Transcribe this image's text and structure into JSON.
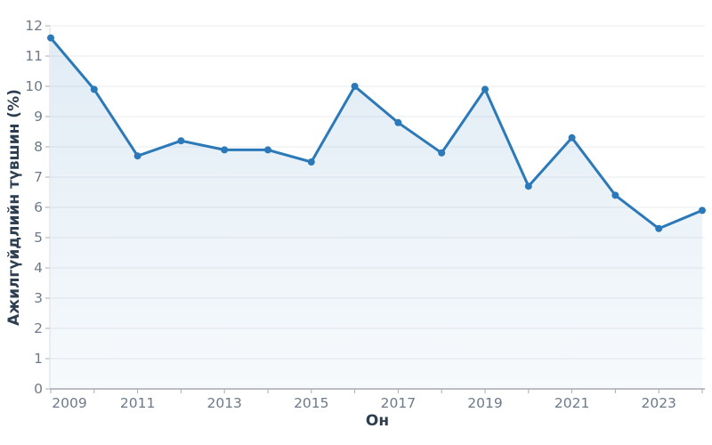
{
  "chart_data": {
    "type": "line",
    "title": "",
    "x": [
      2009,
      2010,
      2011,
      2012,
      2013,
      2014,
      2015,
      2016,
      2017,
      2018,
      2019,
      2020,
      2021,
      2022,
      2023,
      2024
    ],
    "values": [
      11.6,
      9.9,
      7.7,
      8.2,
      7.9,
      7.9,
      7.5,
      10.0,
      8.8,
      7.8,
      9.9,
      6.7,
      8.3,
      6.4,
      5.3,
      5.9
    ],
    "xlabel": "Он",
    "ylabel": "Ажилгүйдлийн түвшин (%)",
    "ylim": [
      0,
      12
    ],
    "ytick_step": 1,
    "xtick_labels": [
      "2009",
      "2011",
      "2013",
      "2015",
      "2017",
      "2019",
      "2021",
      "2023"
    ],
    "grid": "horizontal",
    "legend": "none",
    "marker": "circle",
    "colors": {
      "line": "#2b79b8",
      "marker": "#2b79b8",
      "fill_top": "rgba(43,121,184,0.14)",
      "fill_bottom": "rgba(43,121,184,0.04)",
      "gridline": "#e9ebef",
      "x_axis_line": "#949ba3",
      "y_axis_line": "#d5dae0",
      "tick": "#a7adb4",
      "tick_label": "#6c7a89",
      "axis_title": "#2c3e50",
      "background": "#ffffff"
    }
  }
}
